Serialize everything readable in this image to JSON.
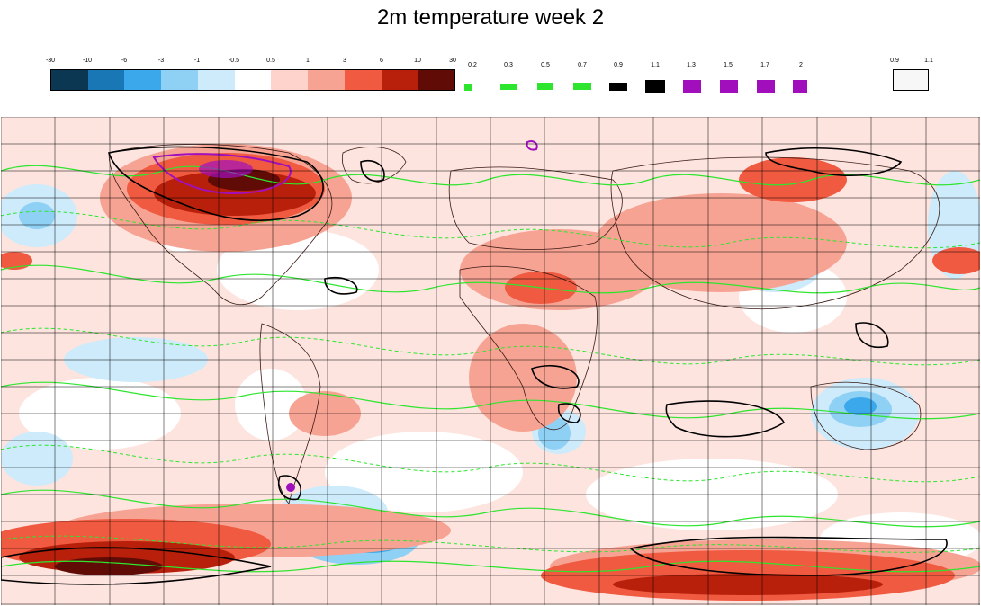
{
  "title": "2m temperature week 2",
  "colorbar": {
    "ticks": [
      "-30",
      "-10",
      "-6",
      "-3",
      "-1",
      "-0.5",
      "0.5",
      "1",
      "3",
      "6",
      "10",
      "30"
    ],
    "colors": [
      "#0b3752",
      "#1a77b5",
      "#3aa8ea",
      "#8fd0f5",
      "#cdebfb",
      "#ffffff",
      "#fdd3cc",
      "#f7a393",
      "#f05a40",
      "#b8200b",
      "#600b05"
    ]
  },
  "contour_legend": {
    "levels": [
      {
        "label": "0.2",
        "color": "#2ee52e"
      },
      {
        "label": "0.3",
        "color": "#2ee52e"
      },
      {
        "label": "0.5",
        "color": "#2ee52e"
      },
      {
        "label": "0.7",
        "color": "#2ee52e"
      },
      {
        "label": "0.9",
        "color": "#000000"
      },
      {
        "label": "1.1",
        "color": "#000000"
      },
      {
        "label": "1.3",
        "color": "#a10fbd"
      },
      {
        "label": "1.5",
        "color": "#a10fbd"
      },
      {
        "label": "1.7",
        "color": "#a10fbd"
      },
      {
        "label": "2",
        "color": "#a10fbd"
      }
    ]
  },
  "probability_legend": {
    "low": "0.9",
    "high": "1.1"
  }
}
